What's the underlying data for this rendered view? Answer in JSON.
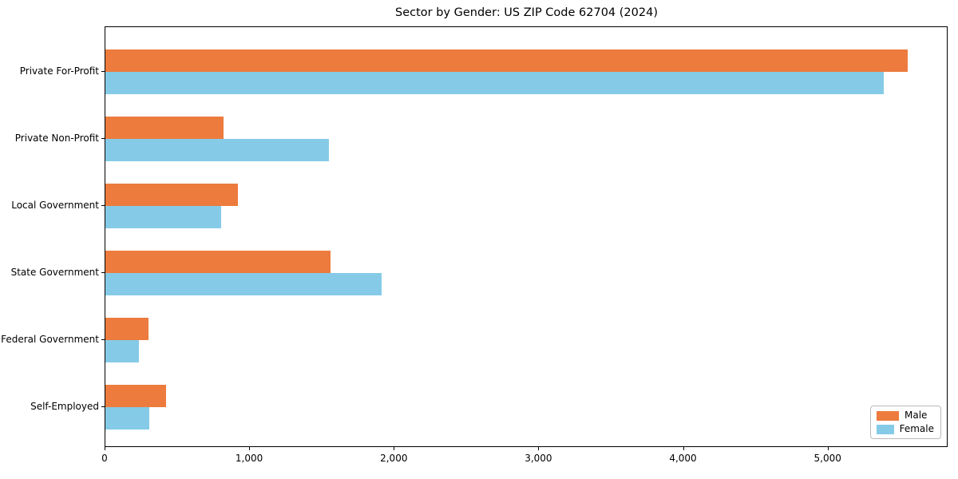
{
  "chart_data": {
    "type": "bar",
    "orientation": "horizontal",
    "title": "Sector by Gender: US ZIP Code 62704 (2024)",
    "categories": [
      "Private For-Profit",
      "Private Non-Profit",
      "Local Government",
      "State Government",
      "Federal Government",
      "Self-Employed"
    ],
    "series": [
      {
        "name": "Male",
        "color": "#ec7b3d",
        "values": [
          5550,
          815,
          917,
          1556,
          298,
          420
        ]
      },
      {
        "name": "Female",
        "color": "#85cbe8",
        "values": [
          5385,
          1546,
          801,
          1909,
          230,
          304
        ]
      }
    ],
    "xlabel": "",
    "ylabel": "",
    "xlim": [
      0,
      5830
    ],
    "xticks": [
      0,
      1000,
      2000,
      3000,
      4000,
      5000
    ],
    "xtick_labels": [
      "0",
      "1,000",
      "2,000",
      "3,000",
      "4,000",
      "5,000"
    ],
    "grid": false,
    "legend_position": "lower right"
  }
}
